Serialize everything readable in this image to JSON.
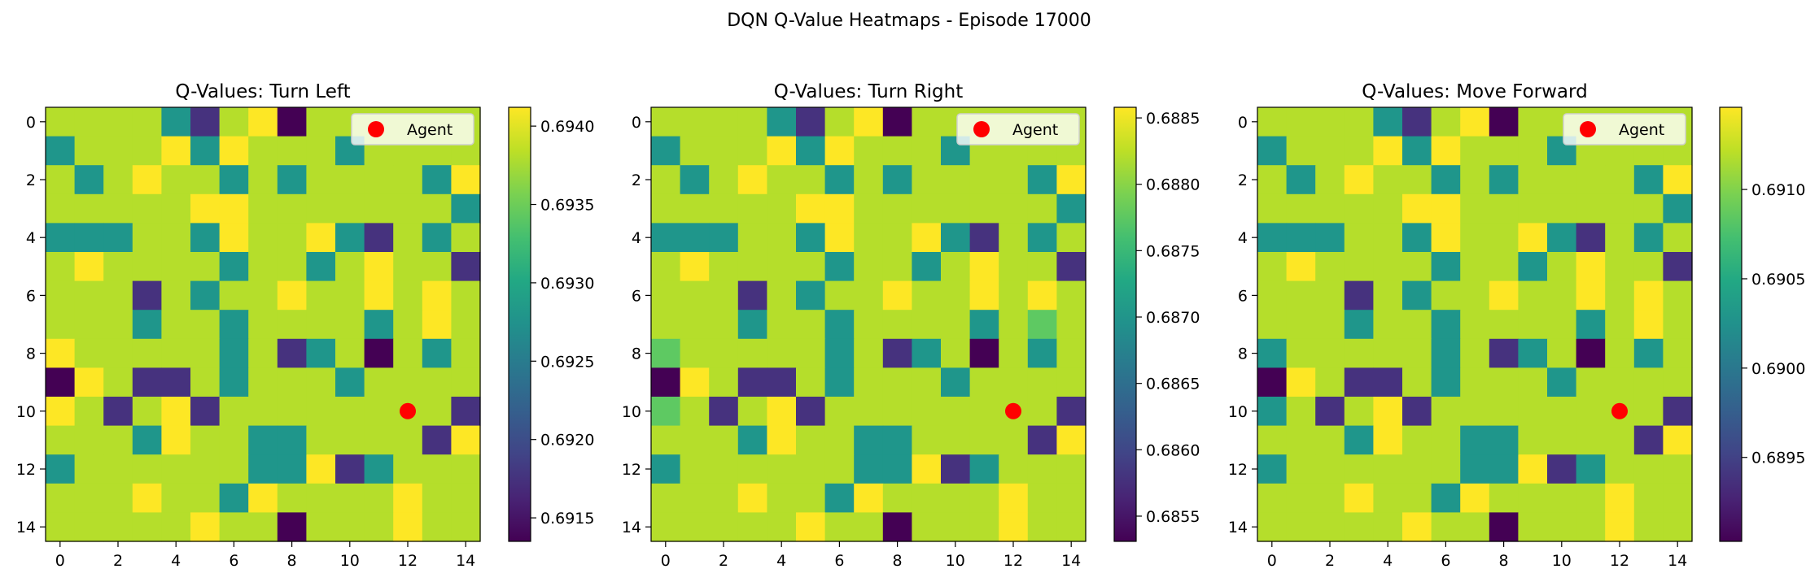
{
  "suptitle": "DQN Q-Value Heatmaps - Episode 17000",
  "legend_label": "Agent",
  "colors": {
    "agent_marker": "#ff0000",
    "colormap": "viridis",
    "palette": {
      "L": "#b5de2b",
      "Y": "#fde725",
      "G": "#21a585",
      "T": "#1f968b",
      "D": "#46327e",
      "P": "#440154",
      "C": "#5ec962",
      "B": "#3b528b"
    }
  },
  "chart_data": [
    {
      "type": "heatmap",
      "title": "Q-Values: Turn Left",
      "xlabel": "",
      "ylabel": "",
      "x_ticks": [
        0,
        2,
        4,
        6,
        8,
        10,
        12,
        14
      ],
      "y_ticks": [
        0,
        2,
        4,
        6,
        8,
        10,
        12,
        14
      ],
      "grid_size": 15,
      "agent": {
        "x": 12,
        "y": 10,
        "label": "Agent"
      },
      "legend_location": "upper right",
      "colorbar": {
        "min": 0.69135,
        "max": 0.69412,
        "ticks": [
          "0.6915",
          "0.6920",
          "0.6925",
          "0.6930",
          "0.6935",
          "0.6940"
        ],
        "tick_values": [
          0.6915,
          0.692,
          0.6925,
          0.693,
          0.6935,
          0.694
        ]
      },
      "value_map": {
        "L": 0.6938,
        "Y": 0.69412,
        "G": 0.6931,
        "T": 0.6929,
        "D": 0.692,
        "P": 0.69135,
        "C": 0.6934,
        "B": 0.6924
      },
      "grid": [
        "LLLLTDLYPLLLLLL",
        "TLLLYTYLLLTLLLL",
        "LTLYLLTLTLLLLTY",
        "LLLLLYYLLLLLLLT",
        "TTTLLTYLLYTDLTL",
        "LYLLLLTLLTLYLLD",
        "LLLDLTLLYLLYLYL",
        "LLLTLLTLLLLTLYL",
        "YLLLLLTLDTLPLTL",
        "PYLDDLTLLLTLLLL",
        "YLDLYDLLLLLLLLD",
        "LLLTYLLTTLLLLDY",
        "TLLLLLLTTYDTLLL",
        "LLLYLLTYLLLLYLL",
        "LLLLLYLLPLLLYLL"
      ]
    },
    {
      "type": "heatmap",
      "title": "Q-Values: Turn Right",
      "xlabel": "",
      "ylabel": "",
      "x_ticks": [
        0,
        2,
        4,
        6,
        8,
        10,
        12,
        14
      ],
      "y_ticks": [
        0,
        2,
        4,
        6,
        8,
        10,
        12,
        14
      ],
      "grid_size": 15,
      "agent": {
        "x": 12,
        "y": 10,
        "label": "Agent"
      },
      "legend_location": "upper right",
      "colorbar": {
        "min": 0.68531,
        "max": 0.68858,
        "ticks": [
          "0.6855",
          "0.6860",
          "0.6865",
          "0.6870",
          "0.6875",
          "0.6880",
          "0.6885"
        ],
        "tick_values": [
          0.6855,
          0.686,
          0.6865,
          0.687,
          0.6875,
          0.688,
          0.6885
        ]
      },
      "value_map": {
        "L": 0.68825,
        "Y": 0.68858,
        "G": 0.68715,
        "T": 0.6869,
        "D": 0.686,
        "P": 0.68531,
        "C": 0.6877,
        "B": 0.6864
      },
      "grid": [
        "LLLLTDLYPLLLLLL",
        "TLLLYTYLLLTLLLL",
        "LTLYLLTLTLLLLTY",
        "LLLLLYYLLLLLLLT",
        "TTTLLTYLLYTDLTL",
        "LYLLLLTLLTLYLLD",
        "LLLDLTLLYLLYLYL",
        "LLLTLLTLLLLTLCL",
        "CLLLLLTLDTLPLTL",
        "PYLDDLTLLLTLLLL",
        "CLDLYDLLLLLLLLD",
        "LLLTYLLTTLLLLDY",
        "TLLLLLLTTYDTLLL",
        "LLLYLLTYLLLLYLL",
        "LLLLLYLLPLLLYLL"
      ]
    },
    {
      "type": "heatmap",
      "title": "Q-Values: Move Forward",
      "xlabel": "",
      "ylabel": "",
      "x_ticks": [
        0,
        2,
        4,
        6,
        8,
        10,
        12,
        14
      ],
      "y_ticks": [
        0,
        2,
        4,
        6,
        8,
        10,
        12,
        14
      ],
      "grid_size": 15,
      "agent": {
        "x": 12,
        "y": 10,
        "label": "Agent"
      },
      "legend_location": "upper right",
      "colorbar": {
        "min": 0.68903,
        "max": 0.69146,
        "ticks": [
          "0.6895",
          "0.6900",
          "0.6905",
          "0.6910"
        ],
        "tick_values": [
          0.6895,
          0.69,
          0.6905,
          0.691
        ]
      },
      "value_map": {
        "L": 0.6912,
        "Y": 0.69146,
        "G": 0.6905,
        "T": 0.6903,
        "D": 0.6897,
        "P": 0.68903,
        "C": 0.6908,
        "B": 0.6899
      },
      "grid": [
        "LLLLTDLYPLLLLLL",
        "TLLLYTYLLLTLLLL",
        "LTLYLLTLTLLLLTY",
        "LLLLLYYLLLLLLLT",
        "TTTLLTYLLYTDLTL",
        "LYLLLLTLLTLYLLD",
        "LLLDLTLLYLLYLYL",
        "LLLTLLTLLLLTLYL",
        "TLLLLLTLDTLPLTL",
        "PYLDDLTLLLTLLLL",
        "TLDLYDLLLLLLLLD",
        "LLLTYLLTTLLLLDY",
        "TLLLLLLTTYDTLLL",
        "LLLYLLTYLLLLYLL",
        "LLLLLYLLPLLLYLL"
      ]
    }
  ]
}
